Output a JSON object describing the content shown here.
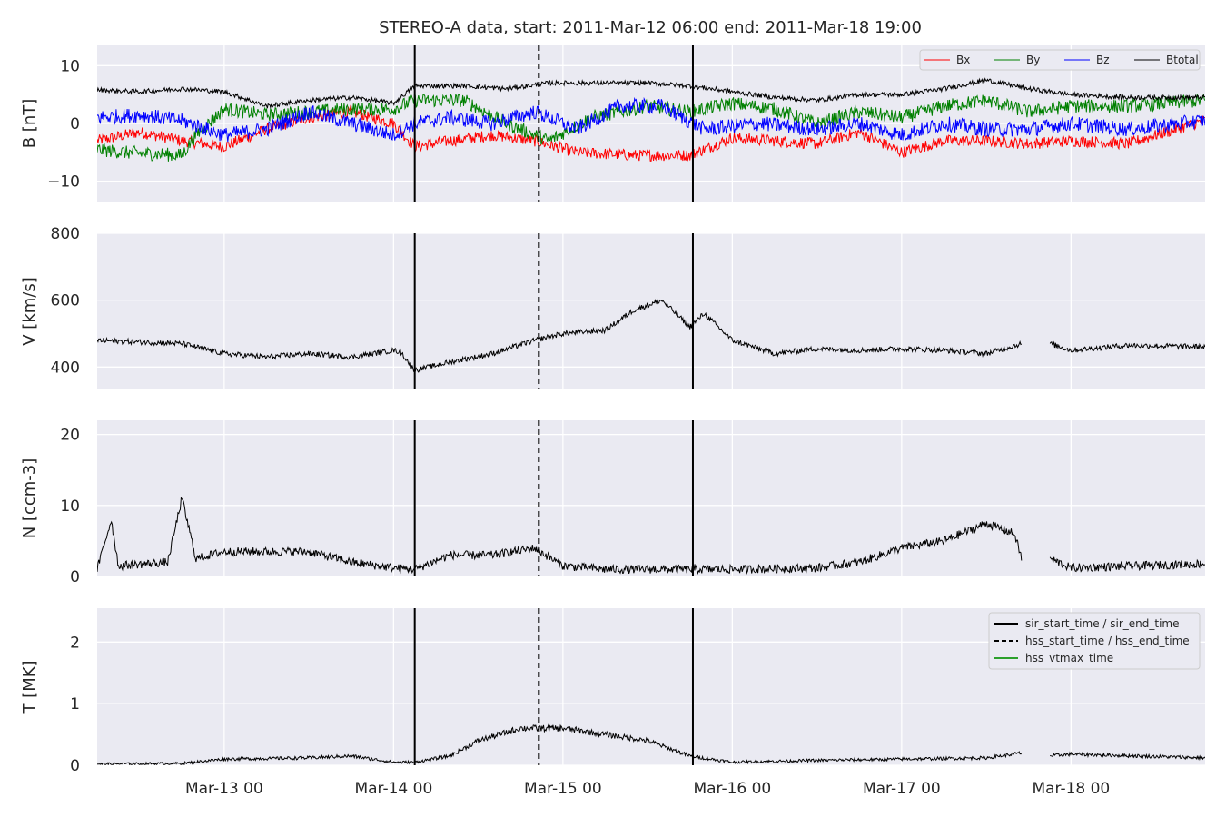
{
  "title": "STEREO-A data, start: 2011-Mar-12 06:00  end: 2011-Mar-18 19:00",
  "chart_data": {
    "type": "line",
    "time_range": [
      "2011-03-12 06:00",
      "2011-03-18 19:00"
    ],
    "x_tick_labels": [
      "Mar-13 00",
      "Mar-14 00",
      "Mar-15 00",
      "Mar-16 00",
      "Mar-17 00",
      "Mar-18 00"
    ],
    "x_ticks": [
      "2011-03-13 00:00",
      "2011-03-14 00:00",
      "2011-03-15 00:00",
      "2011-03-16 00:00",
      "2011-03-17 00:00",
      "2011-03-18 00:00"
    ],
    "grid": true,
    "event_lines": [
      {
        "name": "sir_start_time / sir_end_time",
        "style": "solid",
        "times": [
          "2011-03-14 03:00",
          "2011-03-15 18:25"
        ]
      },
      {
        "name": "hss_start_time / hss_end_time",
        "style": "dashed",
        "times": [
          "2011-03-14 20:35"
        ]
      },
      {
        "name": "hss_vtmax_time",
        "style": "solid",
        "color": "#2ca02c",
        "times": []
      }
    ],
    "panels": [
      {
        "id": "B",
        "ylabel": "B [nT]",
        "ylim": [
          -13.5,
          13.5
        ],
        "yticks": [
          -10,
          0,
          10
        ],
        "ytick_labels": [
          "−10",
          "0",
          "10"
        ],
        "legend_position": "top-right",
        "series": [
          {
            "name": "Bx",
            "color": "#ff0000",
            "noise": 1.0,
            "points": [
              [
                "2011-03-12 06:00",
                -3
              ],
              [
                "2011-03-12 12:00",
                -1.5
              ],
              [
                "2011-03-12 18:00",
                -3
              ],
              [
                "2011-03-13 00:00",
                -4
              ],
              [
                "2011-03-13 06:00",
                -1
              ],
              [
                "2011-03-13 12:00",
                1
              ],
              [
                "2011-03-13 18:00",
                2
              ],
              [
                "2011-03-14 00:00",
                0
              ],
              [
                "2011-03-14 03:00",
                -4
              ],
              [
                "2011-03-14 08:00",
                -3
              ],
              [
                "2011-03-14 14:00",
                -2
              ],
              [
                "2011-03-14 20:00",
                -3
              ],
              [
                "2011-03-15 02:00",
                -5
              ],
              [
                "2011-03-15 10:00",
                -5.5
              ],
              [
                "2011-03-15 18:00",
                -5.5
              ],
              [
                "2011-03-16 00:00",
                -2.5
              ],
              [
                "2011-03-16 06:00",
                -3
              ],
              [
                "2011-03-16 12:00",
                -3.5
              ],
              [
                "2011-03-16 18:00",
                -1.5
              ],
              [
                "2011-03-17 00:00",
                -5
              ],
              [
                "2011-03-17 06:00",
                -3
              ],
              [
                "2011-03-17 12:00",
                -3
              ],
              [
                "2011-03-17 18:00",
                -3.5
              ],
              [
                "2011-03-18 00:00",
                -3
              ],
              [
                "2011-03-18 08:00",
                -3.5
              ],
              [
                "2011-03-18 19:00",
                0.5
              ]
            ]
          },
          {
            "name": "By",
            "color": "#008000",
            "noise": 1.2,
            "points": [
              [
                "2011-03-12 06:00",
                -4.5
              ],
              [
                "2011-03-12 10:00",
                -5
              ],
              [
                "2011-03-12 18:00",
                -5.5
              ],
              [
                "2011-03-12 20:00",
                -2
              ],
              [
                "2011-03-13 00:00",
                2.5
              ],
              [
                "2011-03-13 06:00",
                1.5
              ],
              [
                "2011-03-13 12:00",
                2
              ],
              [
                "2011-03-13 18:00",
                2.5
              ],
              [
                "2011-03-14 00:00",
                2.5
              ],
              [
                "2011-03-14 03:00",
                4
              ],
              [
                "2011-03-14 10:00",
                4
              ],
              [
                "2011-03-14 16:00",
                0
              ],
              [
                "2011-03-14 22:00",
                -3
              ],
              [
                "2011-03-15 04:00",
                1
              ],
              [
                "2011-03-15 12:00",
                3
              ],
              [
                "2011-03-15 18:00",
                2
              ],
              [
                "2011-03-16 00:00",
                3.5
              ],
              [
                "2011-03-16 06:00",
                2.5
              ],
              [
                "2011-03-16 12:00",
                0
              ],
              [
                "2011-03-16 18:00",
                2
              ],
              [
                "2011-03-17 00:00",
                1
              ],
              [
                "2011-03-17 06:00",
                3
              ],
              [
                "2011-03-17 12:00",
                4
              ],
              [
                "2011-03-17 18:00",
                2
              ],
              [
                "2011-03-18 00:00",
                3
              ],
              [
                "2011-03-18 08:00",
                3
              ],
              [
                "2011-03-18 19:00",
                4
              ]
            ]
          },
          {
            "name": "Bz",
            "color": "#0000ff",
            "noise": 1.3,
            "points": [
              [
                "2011-03-12 06:00",
                1
              ],
              [
                "2011-03-12 12:00",
                1.5
              ],
              [
                "2011-03-12 18:00",
                0.5
              ],
              [
                "2011-03-13 00:00",
                -2
              ],
              [
                "2011-03-13 06:00",
                -1
              ],
              [
                "2011-03-13 12:00",
                2
              ],
              [
                "2011-03-13 18:00",
                0
              ],
              [
                "2011-03-14 00:00",
                -2
              ],
              [
                "2011-03-14 03:00",
                0
              ],
              [
                "2011-03-14 08:00",
                1
              ],
              [
                "2011-03-14 14:00",
                0
              ],
              [
                "2011-03-14 20:00",
                2
              ],
              [
                "2011-03-15 02:00",
                -1
              ],
              [
                "2011-03-15 08:00",
                3
              ],
              [
                "2011-03-15 14:00",
                3
              ],
              [
                "2011-03-15 20:00",
                -1
              ],
              [
                "2011-03-16 04:00",
                0
              ],
              [
                "2011-03-16 12:00",
                -1
              ],
              [
                "2011-03-16 18:00",
                0
              ],
              [
                "2011-03-17 00:00",
                -2
              ],
              [
                "2011-03-17 06:00",
                0
              ],
              [
                "2011-03-17 12:00",
                -1
              ],
              [
                "2011-03-17 18:00",
                -1
              ],
              [
                "2011-03-18 00:00",
                0
              ],
              [
                "2011-03-18 08:00",
                -1
              ],
              [
                "2011-03-18 19:00",
                0.5
              ]
            ]
          },
          {
            "name": "Btotal",
            "color": "#000000",
            "noise": 0.4,
            "points": [
              [
                "2011-03-12 06:00",
                5.8
              ],
              [
                "2011-03-12 12:00",
                5.5
              ],
              [
                "2011-03-12 18:00",
                6
              ],
              [
                "2011-03-13 00:00",
                5.5
              ],
              [
                "2011-03-13 06:00",
                3
              ],
              [
                "2011-03-13 12:00",
                4
              ],
              [
                "2011-03-13 18:00",
                4.5
              ],
              [
                "2011-03-14 00:00",
                3.5
              ],
              [
                "2011-03-14 03:00",
                6.5
              ],
              [
                "2011-03-14 10:00",
                6.5
              ],
              [
                "2011-03-14 16:00",
                6
              ],
              [
                "2011-03-14 22:00",
                7
              ],
              [
                "2011-03-15 04:00",
                7
              ],
              [
                "2011-03-15 12:00",
                7
              ],
              [
                "2011-03-15 18:00",
                6.5
              ],
              [
                "2011-03-16 00:00",
                5.5
              ],
              [
                "2011-03-16 06:00",
                4.5
              ],
              [
                "2011-03-16 12:00",
                4
              ],
              [
                "2011-03-16 18:00",
                5
              ],
              [
                "2011-03-17 00:00",
                5
              ],
              [
                "2011-03-17 06:00",
                6
              ],
              [
                "2011-03-17 12:00",
                7.5
              ],
              [
                "2011-03-17 18:00",
                6
              ],
              [
                "2011-03-18 00:00",
                5
              ],
              [
                "2011-03-18 08:00",
                4.5
              ],
              [
                "2011-03-18 19:00",
                4.5
              ]
            ]
          }
        ]
      },
      {
        "id": "V",
        "ylabel": "V [km/s]",
        "ylim": [
          333,
          800
        ],
        "yticks": [
          400,
          600,
          800
        ],
        "ytick_labels": [
          "400",
          "600",
          "800"
        ],
        "series": [
          {
            "name": "V",
            "color": "#000000",
            "noise": 8,
            "points": [
              [
                "2011-03-12 06:00",
                480
              ],
              [
                "2011-03-12 18:00",
                470
              ],
              [
                "2011-03-13 00:00",
                440
              ],
              [
                "2011-03-13 06:00",
                430
              ],
              [
                "2011-03-13 12:00",
                440
              ],
              [
                "2011-03-13 18:00",
                430
              ],
              [
                "2011-03-14 00:00",
                450
              ],
              [
                "2011-03-14 01:00",
                445
              ],
              [
                "2011-03-14 03:00",
                390
              ],
              [
                "2011-03-14 08:00",
                415
              ],
              [
                "2011-03-14 14:00",
                440
              ],
              [
                "2011-03-14 20:00",
                480
              ],
              [
                "2011-03-15 00:00",
                500
              ],
              [
                "2011-03-15 06:00",
                510
              ],
              [
                "2011-03-15 10:00",
                570
              ],
              [
                "2011-03-15 14:00",
                600
              ],
              [
                "2011-03-15 18:00",
                520
              ],
              [
                "2011-03-15 20:00",
                560
              ],
              [
                "2011-03-16 00:00",
                480
              ],
              [
                "2011-03-16 06:00",
                440
              ],
              [
                "2011-03-16 12:00",
                455
              ],
              [
                "2011-03-16 18:00",
                450
              ],
              [
                "2011-03-17 00:00",
                455
              ],
              [
                "2011-03-17 06:00",
                450
              ],
              [
                "2011-03-17 12:00",
                440
              ],
              [
                "2011-03-17 17:00",
                470
              ],
              [
                "2011-03-17 20:00",
                null
              ],
              [
                "2011-03-17 21:00",
                470
              ],
              [
                "2011-03-18 00:00",
                450
              ],
              [
                "2011-03-18 08:00",
                465
              ],
              [
                "2011-03-18 19:00",
                460
              ]
            ]
          }
        ]
      },
      {
        "id": "N",
        "ylabel": "N [ccm-3]",
        "ylim": [
          0,
          22
        ],
        "yticks": [
          0,
          10,
          20
        ],
        "ytick_labels": [
          "0",
          "10",
          "20"
        ],
        "series": [
          {
            "name": "N",
            "color": "#000000",
            "noise": 0.6,
            "points": [
              [
                "2011-03-12 06:00",
                1
              ],
              [
                "2011-03-12 08:00",
                8
              ],
              [
                "2011-03-12 09:00",
                1.5
              ],
              [
                "2011-03-12 16:00",
                2
              ],
              [
                "2011-03-12 18:00",
                11
              ],
              [
                "2011-03-12 20:00",
                2.5
              ],
              [
                "2011-03-13 00:00",
                3.5
              ],
              [
                "2011-03-13 12:00",
                3.5
              ],
              [
                "2011-03-13 18:00",
                2
              ],
              [
                "2011-03-14 00:00",
                1.2
              ],
              [
                "2011-03-14 03:00",
                1
              ],
              [
                "2011-03-14 08:00",
                3
              ],
              [
                "2011-03-14 14:00",
                3
              ],
              [
                "2011-03-14 20:00",
                4
              ],
              [
                "2011-03-15 00:00",
                1.5
              ],
              [
                "2011-03-15 06:00",
                1
              ],
              [
                "2011-03-15 18:00",
                1
              ],
              [
                "2011-03-16 00:00",
                1
              ],
              [
                "2011-03-16 12:00",
                1.2
              ],
              [
                "2011-03-16 18:00",
                2
              ],
              [
                "2011-03-17 00:00",
                4
              ],
              [
                "2011-03-17 06:00",
                5
              ],
              [
                "2011-03-17 12:00",
                7.5
              ],
              [
                "2011-03-17 16:00",
                6
              ],
              [
                "2011-03-17 17:00",
                2.5
              ],
              [
                "2011-03-17 20:00",
                null
              ],
              [
                "2011-03-17 21:00",
                2.5
              ],
              [
                "2011-03-18 00:00",
                1.2
              ],
              [
                "2011-03-18 19:00",
                1.8
              ]
            ]
          }
        ]
      },
      {
        "id": "T",
        "ylabel": "T [MK]",
        "ylim": [
          0,
          2.55
        ],
        "yticks": [
          0,
          1,
          2
        ],
        "ytick_labels": [
          "0",
          "1",
          "2"
        ],
        "legend_position": "top-right",
        "series": [
          {
            "name": "T",
            "color": "#000000",
            "noise": 0.04,
            "points": [
              [
                "2011-03-12 06:00",
                0.02
              ],
              [
                "2011-03-12 18:00",
                0.03
              ],
              [
                "2011-03-13 00:00",
                0.1
              ],
              [
                "2011-03-13 12:00",
                0.12
              ],
              [
                "2011-03-13 18:00",
                0.15
              ],
              [
                "2011-03-14 00:00",
                0.05
              ],
              [
                "2011-03-14 03:00",
                0.05
              ],
              [
                "2011-03-14 08:00",
                0.15
              ],
              [
                "2011-03-14 12:00",
                0.4
              ],
              [
                "2011-03-14 18:00",
                0.6
              ],
              [
                "2011-03-15 00:00",
                0.6
              ],
              [
                "2011-03-15 06:00",
                0.5
              ],
              [
                "2011-03-15 12:00",
                0.4
              ],
              [
                "2011-03-15 18:00",
                0.15
              ],
              [
                "2011-03-16 00:00",
                0.05
              ],
              [
                "2011-03-16 12:00",
                0.08
              ],
              [
                "2011-03-17 00:00",
                0.1
              ],
              [
                "2011-03-17 12:00",
                0.12
              ],
              [
                "2011-03-17 17:00",
                0.2
              ],
              [
                "2011-03-17 20:00",
                null
              ],
              [
                "2011-03-17 21:00",
                0.15
              ],
              [
                "2011-03-18 00:00",
                0.18
              ],
              [
                "2011-03-18 19:00",
                0.12
              ]
            ]
          }
        ]
      }
    ]
  }
}
